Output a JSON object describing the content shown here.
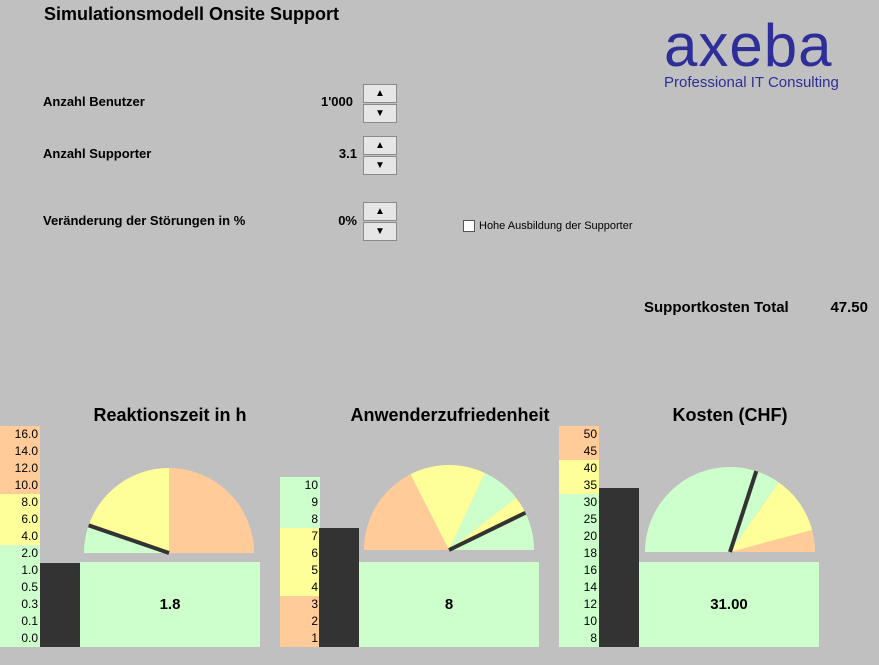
{
  "title": "Simulationsmodell Onsite Support",
  "logo": {
    "word": "axeba",
    "subtitle": "Professional IT Consulting"
  },
  "inputs": [
    {
      "label": "Anzahl Benutzer",
      "value": "1'000"
    },
    {
      "label": "Anzahl Supporter",
      "value": "3.1"
    },
    {
      "label": "Veränderung der Störungen in %",
      "value": "0%"
    }
  ],
  "spinner": {
    "up": "▲",
    "down": "▼"
  },
  "checkbox": {
    "label": "Hohe Ausbildung der Supporter",
    "checked": false
  },
  "supportkosten": {
    "label": "Supportkosten Total",
    "value": "47.50"
  },
  "colors": {
    "red": "#ffcc99",
    "yellow": "#ffff99",
    "green": "#ccffcc",
    "bar": "#333333",
    "logo": "#2e2e99"
  },
  "gauges": [
    {
      "title": "Reaktionszeit in h",
      "scale": [
        "16.0",
        "14.0",
        "12.0",
        "10.0",
        "8.0",
        "6.0",
        "4.0",
        "2.0",
        "1.0",
        "0.5",
        "0.3",
        "0.1",
        "0.0"
      ],
      "scale_colors": [
        "red",
        "red",
        "red",
        "red",
        "yellow",
        "yellow",
        "yellow",
        "green",
        "green",
        "green",
        "green",
        "green",
        "green"
      ],
      "readout": "1.8",
      "level": 0.38,
      "needle_deg": 161,
      "sectors": [
        {
          "from": 0,
          "to": 90,
          "color": "red"
        },
        {
          "from": 90,
          "to": 162,
          "color": "yellow"
        },
        {
          "from": 162,
          "to": 180,
          "color": "green"
        }
      ]
    },
    {
      "title": "Anwenderzufriedenheit",
      "scale": [
        "10",
        "9",
        "8",
        "7",
        "6",
        "5",
        "4",
        "3",
        "2",
        "1"
      ],
      "scale_colors": [
        "green",
        "green",
        "green",
        "yellow",
        "yellow",
        "yellow",
        "yellow",
        "red",
        "red",
        "red"
      ],
      "readout": "8",
      "level": 0.7,
      "needle_deg": 26,
      "sectors": [
        {
          "from": 0,
          "to": 25,
          "color": "green"
        },
        {
          "from": 25,
          "to": 38,
          "color": "yellow"
        },
        {
          "from": 38,
          "to": 65,
          "color": "green"
        },
        {
          "from": 65,
          "to": 117,
          "color": "yellow"
        },
        {
          "from": 117,
          "to": 180,
          "color": "red"
        }
      ]
    },
    {
      "title": "Kosten (CHF)",
      "scale": [
        "50",
        "45",
        "40",
        "35",
        "30",
        "25",
        "20",
        "18",
        "16",
        "14",
        "12",
        "10",
        "8"
      ],
      "scale_colors": [
        "red",
        "red",
        "yellow",
        "yellow",
        "green",
        "green",
        "green",
        "green",
        "green",
        "green",
        "green",
        "green",
        "green"
      ],
      "readout": "31.00",
      "level": 0.72,
      "needle_deg": 72,
      "sectors": [
        {
          "from": 0,
          "to": 15,
          "color": "red"
        },
        {
          "from": 15,
          "to": 55,
          "color": "yellow"
        },
        {
          "from": 55,
          "to": 70,
          "color": "green"
        },
        {
          "from": 70,
          "to": 180,
          "color": "green"
        }
      ]
    }
  ]
}
